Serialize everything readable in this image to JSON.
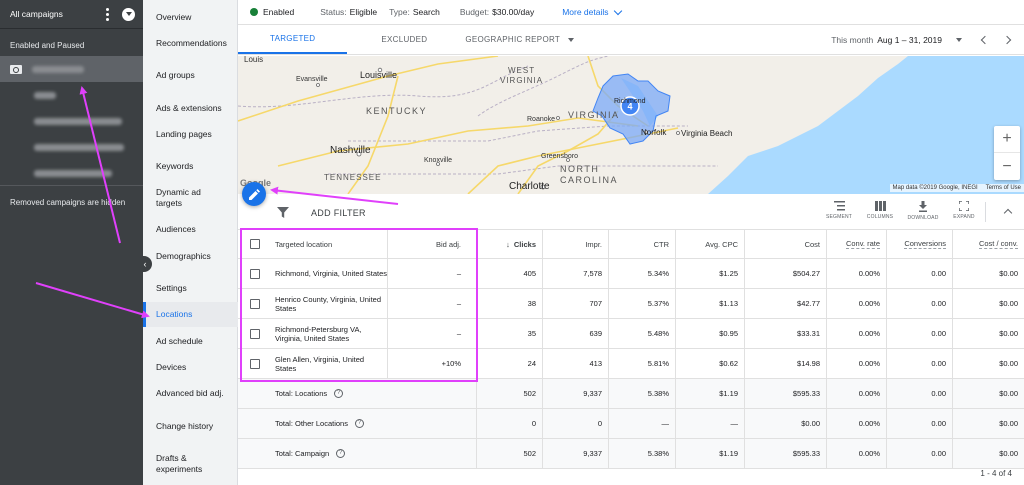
{
  "campaigns": {
    "header_title": "All campaigns",
    "group_label": "Enabled and Paused",
    "removed_note": "Removed campaigns are hidden"
  },
  "nav": {
    "items": [
      {
        "label": "Overview"
      },
      {
        "label": "Recommendations"
      },
      {
        "label": "Ad groups"
      },
      {
        "label": "Ads & extensions"
      },
      {
        "label": "Landing pages"
      },
      {
        "label": "Keywords"
      },
      {
        "label": "Dynamic ad targets"
      },
      {
        "label": "Audiences"
      },
      {
        "label": "Demographics"
      },
      {
        "label": "Settings"
      },
      {
        "label": "Locations"
      },
      {
        "label": "Ad schedule"
      },
      {
        "label": "Devices"
      },
      {
        "label": "Advanced bid adj."
      },
      {
        "label": "Change history"
      },
      {
        "label": "Drafts & experiments"
      }
    ]
  },
  "status_bar": {
    "state": "Enabled",
    "status_label": "Status:",
    "status_value": "Eligible",
    "type_label": "Type:",
    "type_value": "Search",
    "budget_label": "Budget:",
    "budget_value": "$30.00/day",
    "more_details": "More details"
  },
  "tabs": {
    "targeted": "TARGETED",
    "excluded": "EXCLUDED",
    "geo_report": "GEOGRAPHIC REPORT"
  },
  "date": {
    "label": "This month",
    "range": "Aug 1 – 31, 2019"
  },
  "map": {
    "labels": {
      "louis": "Louis",
      "louisville": "Louisville",
      "west_virginia": "WEST\nVIRGINIA",
      "evansville": "Evansville",
      "kentucky": "KENTUCKY",
      "roanoke": "Roanoke",
      "virginia": "VIRGINIA",
      "richmond": "Richmond",
      "norfolk": "Norfolk",
      "virginia_beach": "Virginia Beach",
      "nashville": "Nashville",
      "knoxville": "Knoxville",
      "greensboro": "Greensboro",
      "tennessee": "TENNESSEE",
      "charlotte": "Charlotte",
      "north_carolina_1": "NORTH",
      "north_carolina_2": "CAROLINA",
      "google": "Google"
    },
    "cluster_count": "4",
    "credit": "Map data ©2019 Google, INEGI",
    "terms": "Terms of Use",
    "zoom_in": "+",
    "zoom_out": "−"
  },
  "toolbar": {
    "add_filter": "ADD FILTER",
    "segment": "SEGMENT",
    "columns": "COLUMNS",
    "download": "DOWNLOAD",
    "expand": "EXPAND"
  },
  "table": {
    "headers": {
      "location": "Targeted location",
      "bid": "Bid adj.",
      "clicks": "Clicks",
      "impr": "Impr.",
      "ctr": "CTR",
      "cpc": "Avg. CPC",
      "cost": "Cost",
      "conv_rate": "Conv. rate",
      "conversions": "Conversions",
      "cost_conv": "Cost / conv."
    },
    "rows": [
      {
        "location": "Richmond, Virginia, United States",
        "bid": "–",
        "clicks": "405",
        "impr": "7,578",
        "ctr": "5.34%",
        "cpc": "$1.25",
        "cost": "$504.27",
        "conv_rate": "0.00%",
        "conversions": "0.00",
        "cost_conv": "$0.00"
      },
      {
        "location": "Henrico County, Virginia, United States",
        "bid": "–",
        "clicks": "38",
        "impr": "707",
        "ctr": "5.37%",
        "cpc": "$1.13",
        "cost": "$42.77",
        "conv_rate": "0.00%",
        "conversions": "0.00",
        "cost_conv": "$0.00"
      },
      {
        "location": "Richmond-Petersburg VA, Virginia, United States",
        "bid": "–",
        "clicks": "35",
        "impr": "639",
        "ctr": "5.48%",
        "cpc": "$0.95",
        "cost": "$33.31",
        "conv_rate": "0.00%",
        "conversions": "0.00",
        "cost_conv": "$0.00"
      },
      {
        "location": "Glen Allen, Virginia, United States",
        "bid": "+10%",
        "clicks": "24",
        "impr": "413",
        "ctr": "5.81%",
        "cpc": "$0.62",
        "cost": "$14.98",
        "conv_rate": "0.00%",
        "conversions": "0.00",
        "cost_conv": "$0.00"
      }
    ],
    "totals": [
      {
        "label": "Total: Locations",
        "clicks": "502",
        "impr": "9,337",
        "ctr": "5.38%",
        "cpc": "$1.19",
        "cost": "$595.33",
        "conv_rate": "0.00%",
        "conversions": "0.00",
        "cost_conv": "$0.00"
      },
      {
        "label": "Total: Other Locations",
        "clicks": "0",
        "impr": "0",
        "ctr": "—",
        "cpc": "—",
        "cost": "$0.00",
        "conv_rate": "0.00%",
        "conversions": "0.00",
        "cost_conv": "$0.00"
      },
      {
        "label": "Total: Campaign",
        "clicks": "502",
        "impr": "9,337",
        "ctr": "5.38%",
        "cpc": "$1.19",
        "cost": "$595.33",
        "conv_rate": "0.00%",
        "conversions": "0.00",
        "cost_conv": "$0.00"
      }
    ],
    "pager": "1 - 4 of 4"
  },
  "colors": {
    "accent": "#1a73e8",
    "annotation": "#e040fb",
    "enabled": "#188038"
  }
}
